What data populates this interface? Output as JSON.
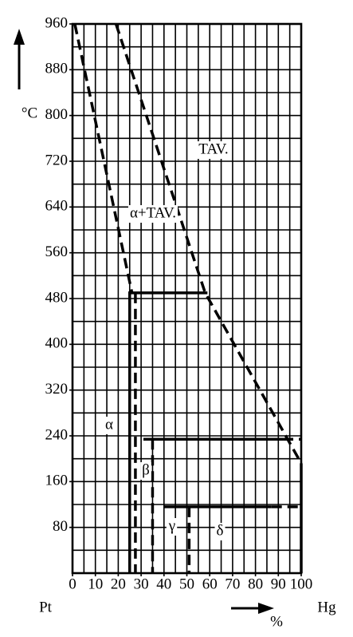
{
  "chart_data": {
    "type": "line",
    "y_label": "°C",
    "x_label": "%",
    "x_end_labels": [
      "Pt",
      "Hg"
    ],
    "xlim": [
      0,
      100
    ],
    "ylim": [
      0,
      960
    ],
    "xticks": [
      0,
      10,
      20,
      30,
      40,
      50,
      60,
      70,
      80,
      90,
      100
    ],
    "yticks": [
      80,
      160,
      240,
      320,
      400,
      480,
      560,
      640,
      720,
      800,
      880,
      960
    ],
    "grid": true,
    "grid_spacing": {
      "x": 5,
      "y": 40
    },
    "color": "#000000",
    "series": [
      {
        "style": "dashed",
        "x": [
          1,
          26
        ],
        "values": [
          960,
          490
        ]
      },
      {
        "style": "dashed",
        "x": [
          27.5,
          27.5
        ],
        "values": [
          490,
          0
        ]
      },
      {
        "style": "dashed",
        "x": [
          19,
          58,
          100
        ],
        "values": [
          960,
          490,
          192
        ]
      },
      {
        "style": "solid",
        "x": [
          25,
          25,
          59
        ],
        "values": [
          0,
          490,
          490
        ]
      },
      {
        "style": "solid",
        "x": [
          31,
          92
        ],
        "values": [
          234,
          234
        ]
      },
      {
        "style": "dashed",
        "x": [
          92,
          100
        ],
        "values": [
          234,
          234
        ]
      },
      {
        "style": "dashed",
        "x": [
          35,
          35
        ],
        "values": [
          234,
          0
        ]
      },
      {
        "style": "solid",
        "x": [
          40,
          87
        ],
        "values": [
          116,
          116
        ]
      },
      {
        "style": "dashed",
        "x": [
          87,
          100
        ],
        "values": [
          116,
          116
        ]
      },
      {
        "style": "dashed",
        "x": [
          51,
          51
        ],
        "values": [
          116,
          0
        ]
      },
      {
        "style": "solid",
        "x": [
          100,
          100
        ],
        "values": [
          192,
          0
        ]
      }
    ],
    "annotations": [
      "TAV.",
      "α+TAV.",
      "α",
      "β",
      "γ",
      "δ"
    ]
  }
}
